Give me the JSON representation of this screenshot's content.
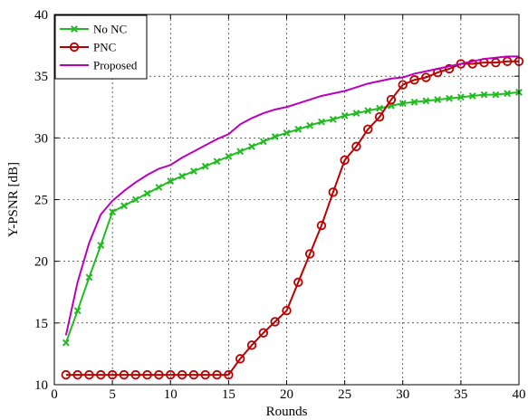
{
  "chart_data": {
    "type": "line",
    "xlabel": "Rounds",
    "ylabel": "Y-PSNR [dB]",
    "xlim": [
      0,
      40
    ],
    "ylim": [
      10,
      40
    ],
    "xticks": [
      "0",
      "5",
      "10",
      "15",
      "20",
      "25",
      "30",
      "35",
      "40"
    ],
    "yticks": [
      "10",
      "15",
      "20",
      "25",
      "30",
      "35",
      "40"
    ],
    "grid": true,
    "legend_position": "top-left",
    "series": [
      {
        "name": "No NC",
        "color": "#22bb22",
        "marker": "x",
        "x": [
          1,
          2,
          3,
          4,
          5,
          6,
          7,
          8,
          9,
          10,
          11,
          12,
          13,
          14,
          15,
          16,
          17,
          18,
          19,
          20,
          21,
          22,
          23,
          24,
          25,
          26,
          27,
          28,
          29,
          30,
          31,
          32,
          33,
          34,
          35,
          36,
          37,
          38,
          39,
          40
        ],
        "y": [
          13.4,
          16.0,
          18.7,
          21.3,
          24.0,
          24.5,
          25.0,
          25.5,
          26.0,
          26.5,
          26.9,
          27.3,
          27.7,
          28.1,
          28.5,
          28.9,
          29.3,
          29.7,
          30.1,
          30.4,
          30.7,
          31.0,
          31.3,
          31.5,
          31.8,
          32.0,
          32.2,
          32.4,
          32.6,
          32.8,
          32.9,
          33.0,
          33.1,
          33.2,
          33.3,
          33.4,
          33.5,
          33.5,
          33.6,
          33.7
        ]
      },
      {
        "name": "PNC",
        "color": "#bb0000",
        "marker": "circle",
        "x": [
          1,
          2,
          3,
          4,
          5,
          6,
          7,
          8,
          9,
          10,
          11,
          12,
          13,
          14,
          15,
          16,
          17,
          18,
          19,
          20,
          21,
          22,
          23,
          24,
          25,
          26,
          27,
          28,
          29,
          30,
          31,
          32,
          33,
          34,
          35,
          36,
          37,
          38,
          39,
          40
        ],
        "y": [
          10.8,
          10.8,
          10.8,
          10.8,
          10.8,
          10.8,
          10.8,
          10.8,
          10.8,
          10.8,
          10.8,
          10.8,
          10.8,
          10.8,
          10.8,
          12.1,
          13.2,
          14.2,
          15.1,
          16.0,
          18.3,
          20.6,
          22.9,
          25.6,
          28.2,
          29.3,
          30.7,
          31.7,
          33.1,
          34.3,
          34.7,
          34.9,
          35.3,
          35.6,
          36.0,
          36.0,
          36.1,
          36.1,
          36.2,
          36.2
        ]
      },
      {
        "name": "Proposed",
        "color": "#bb00bb",
        "marker": "none",
        "x": [
          1,
          2,
          3,
          4,
          5,
          6,
          7,
          8,
          9,
          10,
          11,
          12,
          13,
          14,
          15,
          16,
          17,
          18,
          19,
          20,
          21,
          22,
          23,
          24,
          25,
          26,
          27,
          28,
          29,
          30,
          31,
          32,
          33,
          34,
          35,
          36,
          37,
          38,
          39,
          40
        ],
        "y": [
          14.0,
          18.3,
          21.5,
          23.8,
          24.9,
          25.7,
          26.4,
          27.0,
          27.5,
          27.8,
          28.4,
          28.9,
          29.4,
          29.9,
          30.3,
          31.1,
          31.6,
          32.0,
          32.3,
          32.5,
          32.8,
          33.1,
          33.4,
          33.6,
          33.8,
          34.1,
          34.4,
          34.6,
          34.8,
          34.9,
          35.2,
          35.4,
          35.6,
          35.8,
          36.0,
          36.2,
          36.4,
          36.5,
          36.6,
          36.6
        ]
      }
    ]
  }
}
